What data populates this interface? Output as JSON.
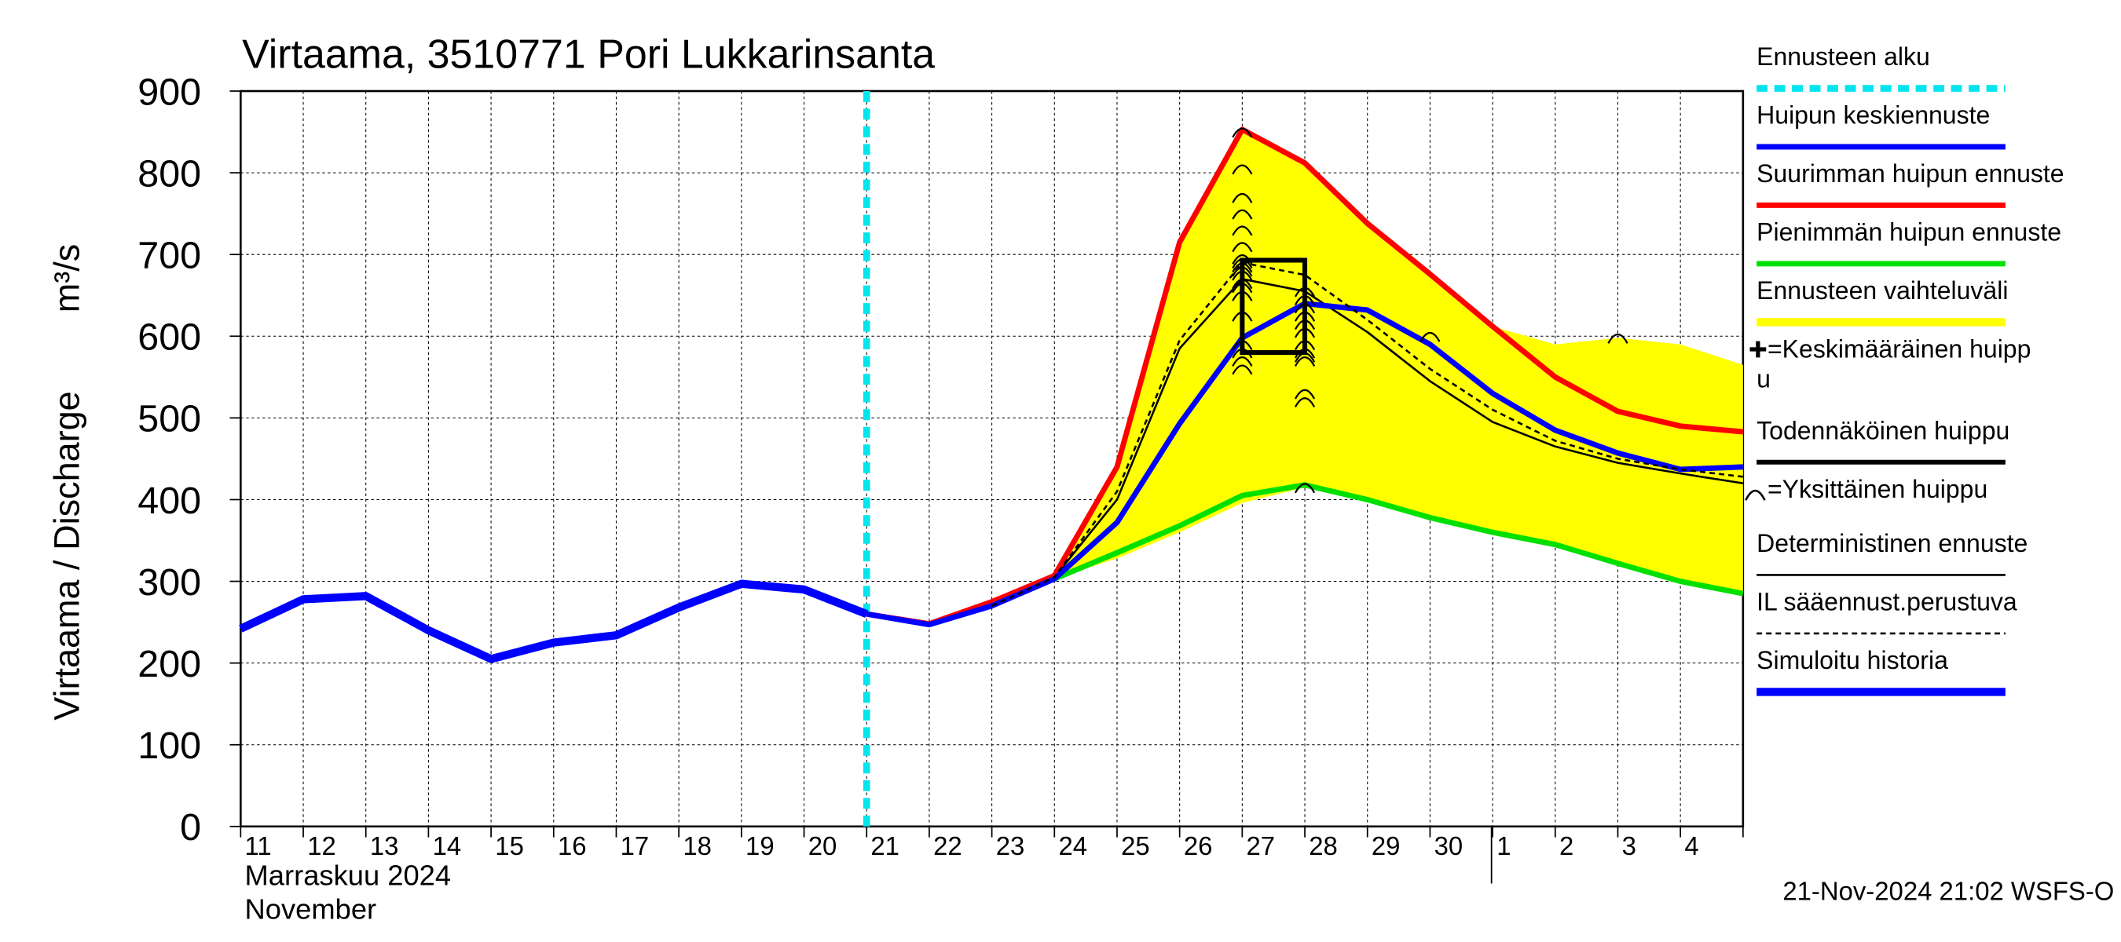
{
  "chart_data": {
    "type": "line",
    "title": "Virtaama, 3510771 Pori Lukkarinsanta",
    "y_label": "Virtaama / Discharge",
    "y_unit": "m³/s",
    "x_label_fi": "Marraskuu 2024",
    "x_label_en": "November",
    "footer": "21-Nov-2024 21:02 WSFS-O",
    "categories": [
      "11",
      "12",
      "13",
      "14",
      "15",
      "16",
      "17",
      "18",
      "19",
      "20",
      "21",
      "22",
      "23",
      "24",
      "25",
      "26",
      "27",
      "28",
      "29",
      "30",
      "1",
      "2",
      "3",
      "4",
      null
    ],
    "ylim": [
      0,
      900
    ],
    "yticks": [
      0,
      100,
      200,
      300,
      400,
      500,
      600,
      700,
      800,
      900
    ],
    "grid": true,
    "series": [
      {
        "name": [
          "Ennusteen alku"
        ],
        "color": "#00e5ee",
        "style": "vline",
        "x": "21"
      },
      {
        "name": [
          "Huipun keskiennuste"
        ],
        "color": "#0000ff",
        "style": "line",
        "width": 4,
        "values": [
          null,
          null,
          null,
          null,
          null,
          null,
          null,
          null,
          null,
          null,
          260,
          247,
          270,
          303,
          372,
          493,
          598,
          640,
          632,
          590,
          530,
          485,
          457,
          437,
          440
        ]
      },
      {
        "name": [
          "Suurimman huipun ennuste"
        ],
        "color": "#ff0000",
        "style": "line",
        "width": 4,
        "values": [
          null,
          null,
          null,
          null,
          null,
          null,
          null,
          null,
          null,
          null,
          260,
          248,
          275,
          307,
          440,
          715,
          853,
          812,
          738,
          676,
          612,
          550,
          508,
          490,
          483
        ]
      },
      {
        "name": [
          "Pienimmän huipun ennuste"
        ],
        "color": "#00e000",
        "style": "line",
        "width": 4,
        "values": [
          null,
          null,
          null,
          null,
          null,
          null,
          null,
          null,
          null,
          null,
          null,
          null,
          null,
          303,
          335,
          368,
          405,
          418,
          400,
          378,
          360,
          345,
          322,
          300,
          285
        ]
      },
      {
        "name": [
          "Ennusteen vaihteluväli"
        ],
        "color": "#ffff00",
        "style": "band",
        "upper": [
          null,
          null,
          null,
          null,
          null,
          null,
          null,
          null,
          null,
          null,
          null,
          null,
          null,
          307,
          440,
          715,
          853,
          812,
          738,
          676,
          612,
          590,
          598,
          590,
          565
        ],
        "lower": [
          null,
          null,
          null,
          null,
          null,
          null,
          null,
          null,
          null,
          null,
          null,
          null,
          null,
          303,
          328,
          360,
          396,
          415,
          400,
          378,
          360,
          345,
          322,
          300,
          285
        ]
      },
      {
        "name": [
          "=Keskimääräinen huipp",
          "u"
        ],
        "color": "#000000",
        "style": "plus"
      },
      {
        "name": [
          "Todennäköinen huippu"
        ],
        "color": "#000000",
        "style": "box",
        "x": [
          "27",
          "28"
        ],
        "values": [
          580,
          693
        ]
      },
      {
        "name": [
          "=Yksittäinen huippu"
        ],
        "color": "#000000",
        "style": "arc",
        "points": [
          {
            "x": "27",
            "values": [
              850,
              805,
              770,
              750,
              730,
              710,
              695,
              690,
              685,
              680,
              675,
              665,
              660,
              650,
              625,
              590,
              580,
              570,
              560
            ]
          },
          {
            "x": "28",
            "values": [
              655,
              645,
              635,
              625,
              615,
              605,
              590,
              580,
              575,
              570,
              530,
              520,
              415
            ]
          },
          {
            "x": "30",
            "values": [
              600
            ]
          },
          {
            "x": "3",
            "values": [
              598
            ]
          }
        ]
      },
      {
        "name": [
          "Deterministinen ennuste"
        ],
        "color": "#000000",
        "style": "line",
        "width": 1.5,
        "values": [
          null,
          null,
          null,
          null,
          null,
          null,
          null,
          null,
          null,
          null,
          null,
          null,
          270,
          305,
          400,
          585,
          670,
          655,
          605,
          545,
          495,
          465,
          445,
          432,
          420
        ]
      },
      {
        "name": [
          "IL sääennust.perustuva"
        ],
        "color": "#000000",
        "style": "dashed",
        "width": 1.5,
        "values": [
          null,
          null,
          null,
          null,
          null,
          null,
          null,
          null,
          null,
          null,
          null,
          null,
          270,
          305,
          410,
          595,
          690,
          675,
          620,
          560,
          510,
          472,
          450,
          437,
          428
        ]
      },
      {
        "name": [
          "Simuloitu historia"
        ],
        "color": "#0000ff",
        "style": "line",
        "width": 6,
        "values": [
          242,
          278,
          282,
          240,
          205,
          225,
          234,
          268,
          297,
          290,
          260,
          null,
          null,
          null,
          null,
          null,
          null,
          null,
          null,
          null,
          null,
          null,
          null,
          null,
          null
        ]
      }
    ]
  }
}
